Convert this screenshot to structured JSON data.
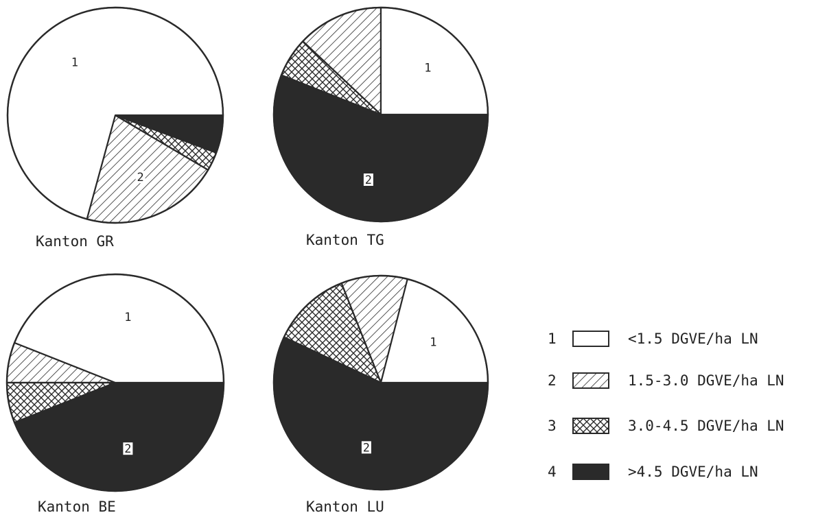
{
  "chart_data": [
    {
      "type": "pie",
      "title": "Kanton GR",
      "values": [
        75.0,
        22.0,
        3.0,
        6.0
      ],
      "slice_labels": [
        "1",
        "2",
        "",
        ""
      ]
    },
    {
      "type": "pie",
      "title": "Kanton TG",
      "values": [
        25.0,
        13.0,
        6.0,
        56.0
      ],
      "slice_labels": [
        "1",
        "",
        "",
        "2"
      ]
    },
    {
      "type": "pie",
      "title": "Kanton BE",
      "values": [
        44.0,
        6.0,
        6.0,
        44.0
      ],
      "slice_labels": [
        "1",
        "",
        "",
        "2"
      ]
    },
    {
      "type": "pie",
      "title": "Kanton LU",
      "values": [
        21.0,
        10.0,
        12.0,
        57.0
      ],
      "slice_labels": [
        "1",
        "",
        "",
        "2"
      ]
    }
  ],
  "legend": [
    {
      "number": "1",
      "label": "<1.5 DGVE/ha LN",
      "pattern": "white"
    },
    {
      "number": "2",
      "label": "1.5-3.0 DGVE/ha LN",
      "pattern": "hatch"
    },
    {
      "number": "3",
      "label": "3.0-4.5 DGVE/ha LN",
      "pattern": "crosshatch"
    },
    {
      "number": "4",
      "label": ">4.5 DGVE/ha LN",
      "pattern": "solid"
    }
  ],
  "colors": {
    "ink": "#2a2a2a",
    "paper": "#ffffff"
  }
}
